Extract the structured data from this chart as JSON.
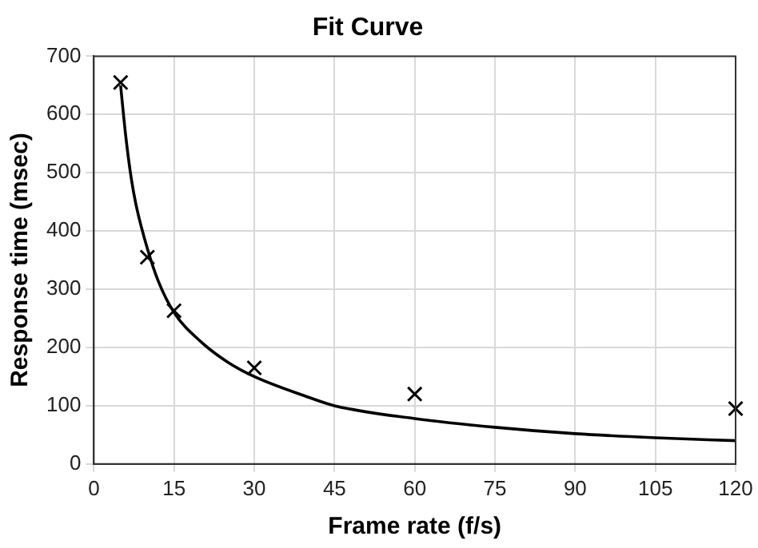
{
  "chart_data": {
    "type": "scatter",
    "title": "Fit Curve",
    "xlabel": "Frame rate (f/s)",
    "ylabel": "Response time (msec)",
    "series": [
      {
        "type": "scatter",
        "color": "#000000",
        "marker": "cross",
        "x": [
          5,
          10,
          15,
          30,
          60,
          120
        ],
        "values": [
          655,
          355,
          263,
          165,
          120,
          95
        ]
      },
      {
        "type": "line",
        "color": "#000000",
        "marker": "none",
        "line_style": "solid",
        "x": [
          5,
          6,
          7,
          8,
          10,
          12,
          15,
          20,
          25,
          30,
          40,
          45,
          60,
          75,
          90,
          105,
          120
        ],
        "values": [
          650,
          560,
          490,
          440,
          370,
          315,
          260,
          210,
          175,
          150,
          115,
          100,
          78,
          63,
          52,
          45,
          40
        ]
      }
    ],
    "xlim": [
      0,
      120
    ],
    "xticks": [
      0,
      15,
      30,
      45,
      60,
      75,
      90,
      105,
      120
    ],
    "ylim": [
      0,
      700
    ],
    "yticks": [
      0,
      100,
      200,
      300,
      400,
      500,
      600,
      700
    ],
    "grid": true,
    "legend": false
  }
}
